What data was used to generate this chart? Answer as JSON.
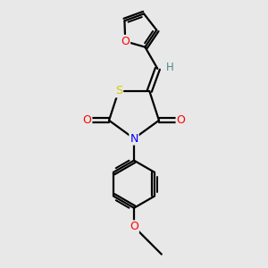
{
  "background_color": "#e8e8e8",
  "atom_colors": {
    "C": "#000000",
    "H": "#4a8a8a",
    "N": "#0000ff",
    "O": "#ff0000",
    "S": "#cccc00"
  },
  "bond_color": "#000000",
  "bond_width": 1.6,
  "figsize": [
    3.0,
    3.0
  ],
  "dpi": 100
}
